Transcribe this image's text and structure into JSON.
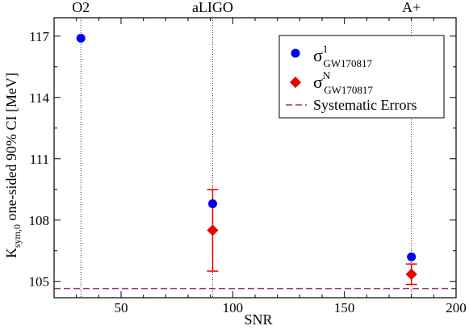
{
  "chart_data": {
    "type": "scatter",
    "xlabel": "SNR",
    "ylabel": {
      "main": "K",
      "sub": "sym,0",
      "rest": " one-sided 90% CI [MeV]"
    },
    "xlim": [
      20,
      200
    ],
    "ylim": [
      104.2,
      117.9
    ],
    "xticks": [
      50,
      100,
      150,
      200
    ],
    "yticks": [
      105,
      108,
      111,
      114,
      117
    ],
    "reference_lines": [
      {
        "label": "O2",
        "x": 32
      },
      {
        "label": "aLIGO",
        "x": 91
      },
      {
        "label": "A+",
        "x": 180
      }
    ],
    "series": [
      {
        "name_main": "σ",
        "name_sup": "1",
        "name_sub": "GW170817",
        "marker": "circle",
        "color": "#0000ee",
        "points": [
          {
            "x": 32,
            "y": 116.9
          },
          {
            "x": 91,
            "y": 108.8
          },
          {
            "x": 180,
            "y": 106.2
          }
        ]
      },
      {
        "name_main": "σ",
        "name_sup": "N",
        "name_sub": "GW170817",
        "marker": "diamond",
        "color": "#ee0000",
        "points": [
          {
            "x": 91,
            "y": 107.5,
            "err_low": 105.5,
            "err_high": 109.5
          },
          {
            "x": 180,
            "y": 105.35,
            "err_low": 104.85,
            "err_high": 105.85
          }
        ]
      }
    ],
    "systematic_line": {
      "name": "Systematic Errors",
      "y": 104.65,
      "color": "#8b3a82",
      "style": "dashed"
    },
    "legend_position": "top-right"
  }
}
